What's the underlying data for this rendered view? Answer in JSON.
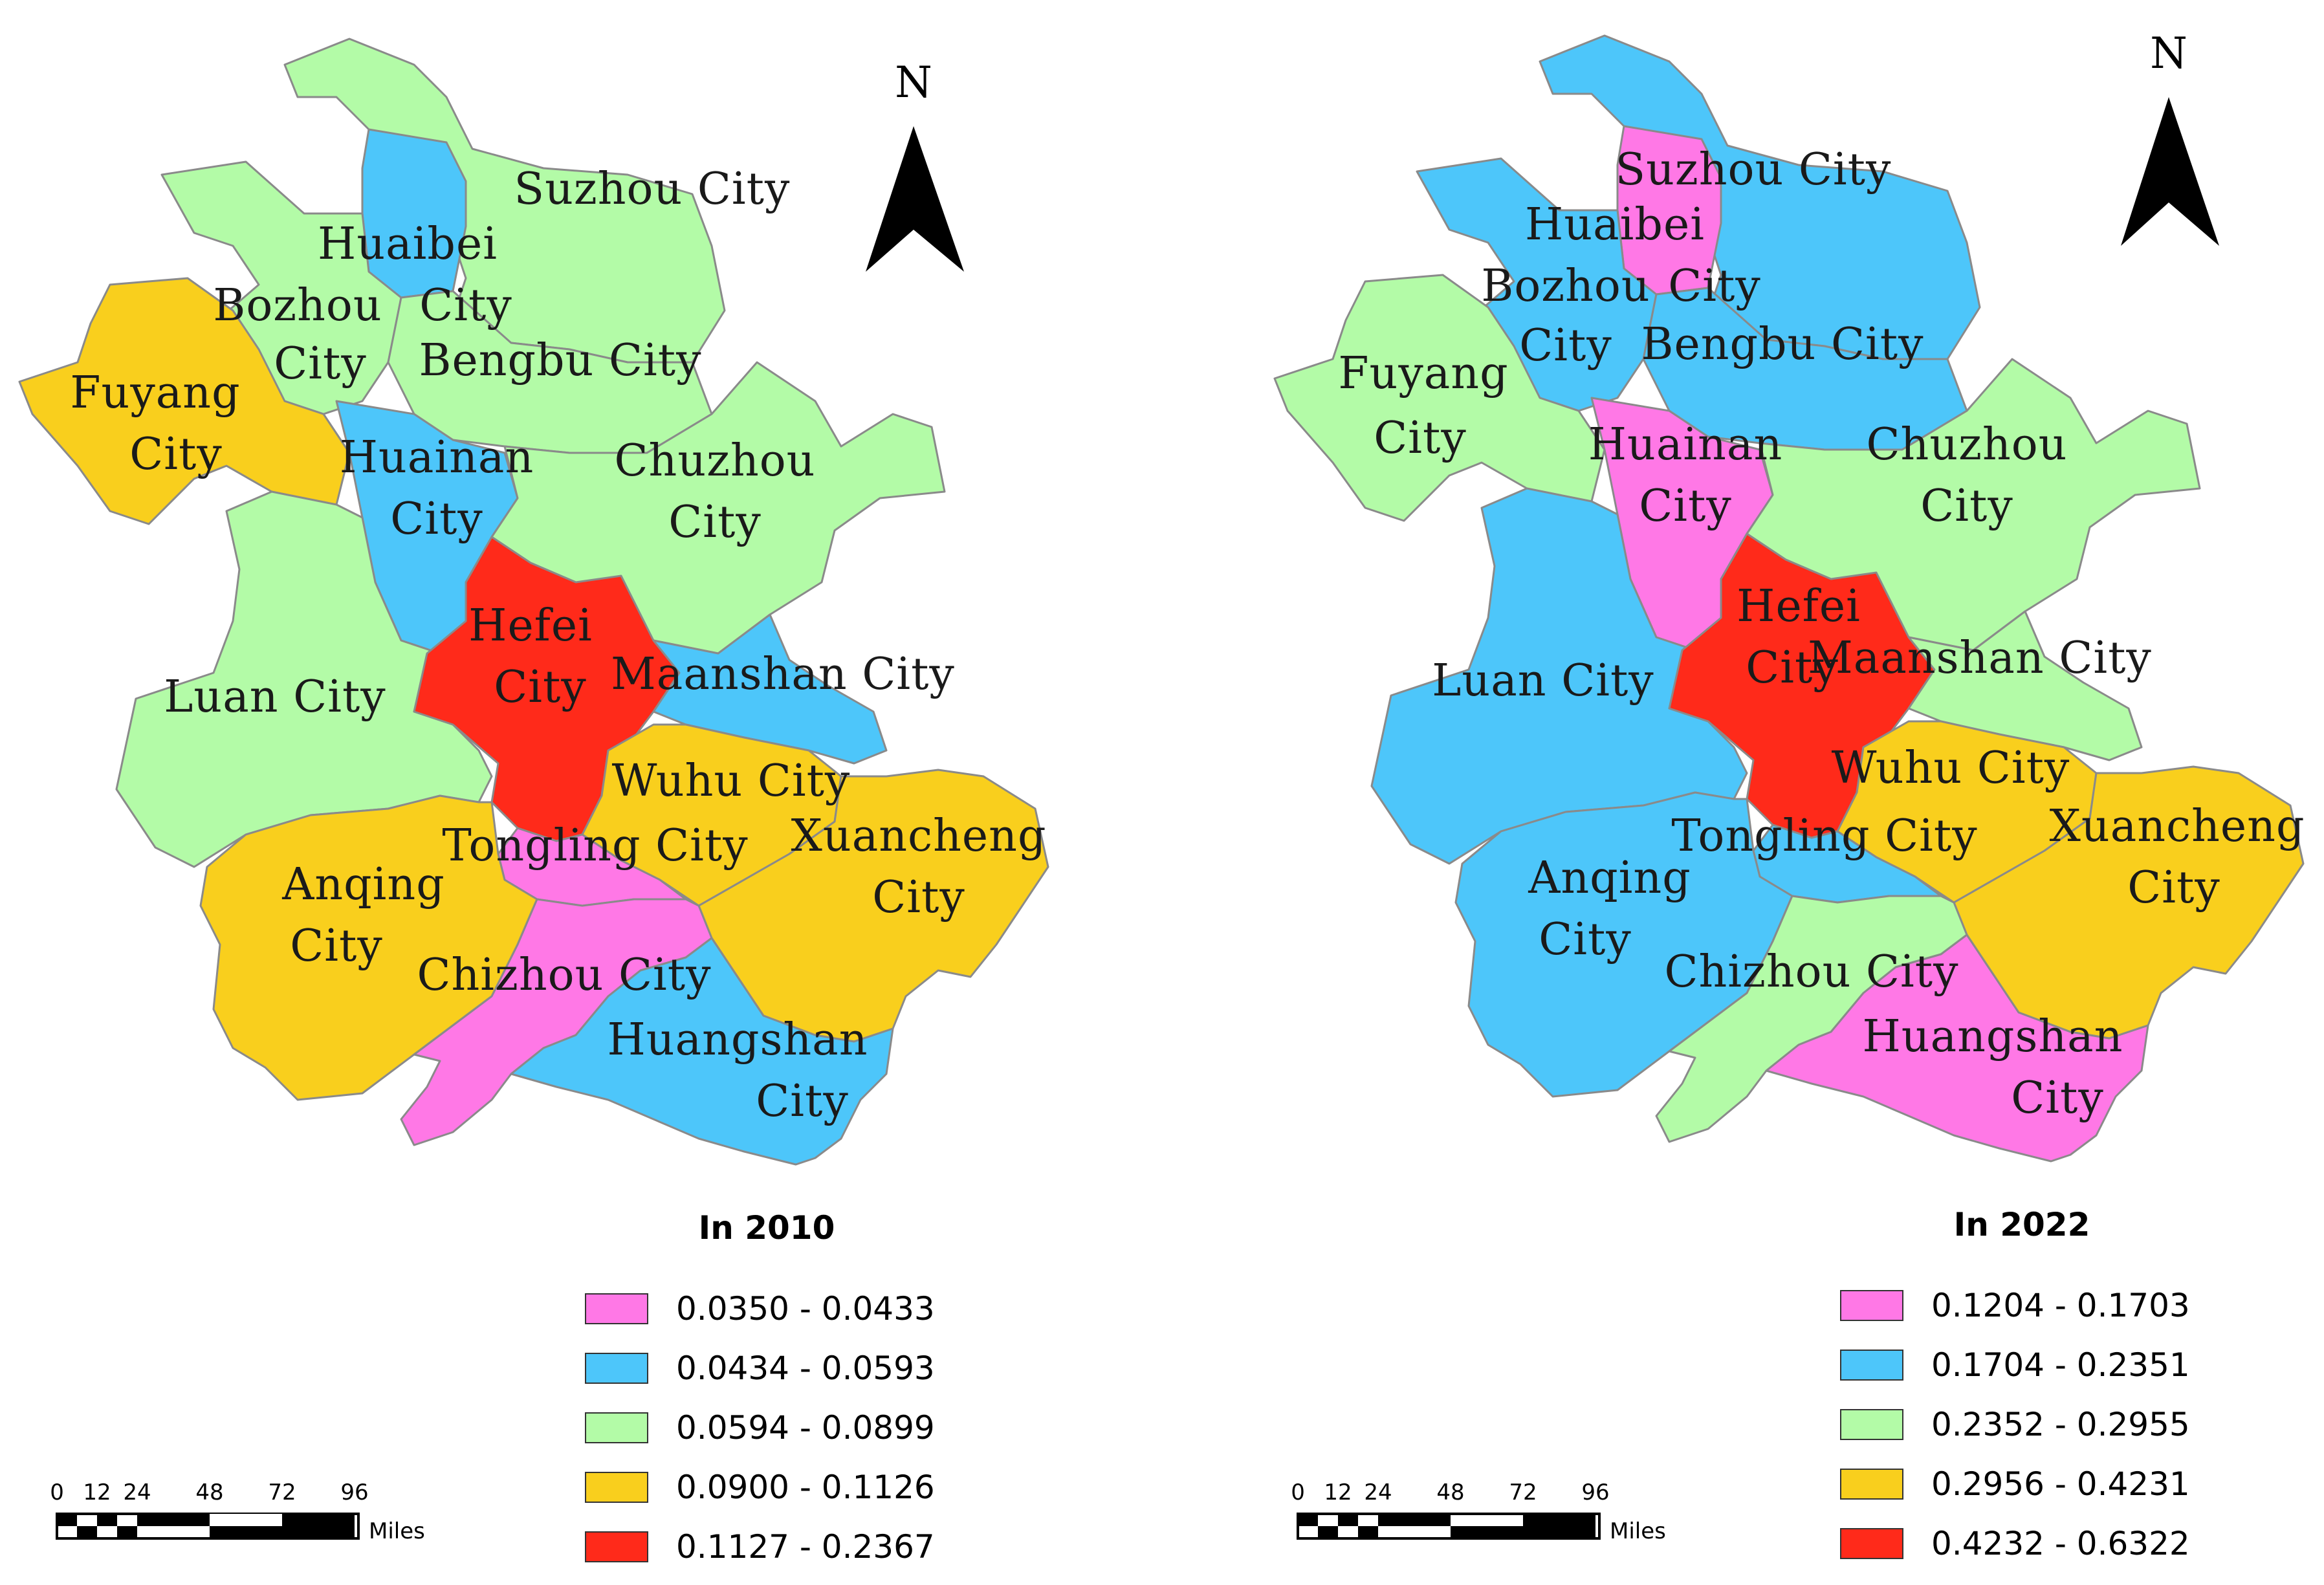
{
  "colors": {
    "class1": "#ff78e6",
    "class2": "#4dc6fa",
    "class3": "#b3fba7",
    "class4": "#f9cf1d",
    "class5": "#ff2a1a"
  },
  "maps": [
    {
      "title": "In 2010",
      "north_label": "N",
      "legend": [
        {
          "range": "0.0350 - 0.0433",
          "class": "class1"
        },
        {
          "range": "0.0434 - 0.0593",
          "class": "class2"
        },
        {
          "range": "0.0594 - 0.0899",
          "class": "class3"
        },
        {
          "range": "0.0900 - 0.1126",
          "class": "class4"
        },
        {
          "range": "0.1127 - 0.2367",
          "class": "class5"
        }
      ],
      "scale": {
        "ticks": [
          "0",
          "12",
          "24",
          "48",
          "72",
          "96"
        ],
        "unit": "Miles"
      },
      "cities": {
        "suzhou": {
          "line1": "Suzhou",
          "line2": "City",
          "class": "class3"
        },
        "huaibei": {
          "line1": "Huaibei",
          "line2": "City",
          "class": "class2"
        },
        "bozhou": {
          "line1": "Bozhou",
          "line2": "City",
          "class": "class3"
        },
        "bengbu": {
          "line1": "Bengbu",
          "line2": "City",
          "class": "class3"
        },
        "fuyang": {
          "line1": "Fuyang",
          "line2": "City",
          "class": "class4"
        },
        "huainan": {
          "line1": "Huainan",
          "line2": "City",
          "class": "class2"
        },
        "chuzhou": {
          "line1": "Chuzhou",
          "line2": "City",
          "class": "class3"
        },
        "hefei": {
          "line1": "Hefei",
          "line2": "City",
          "class": "class5"
        },
        "luan": {
          "line1": "Luan",
          "line2": "City",
          "class": "class3"
        },
        "maanshan": {
          "line1": "Maanshan",
          "line2": "City",
          "class": "class2"
        },
        "wuhu": {
          "line1": "Wuhu",
          "line2": "City",
          "class": "class4"
        },
        "tongling": {
          "line1": "Tongling",
          "line2": "City",
          "class": "class1"
        },
        "xuancheng": {
          "line1": "Xuancheng",
          "line2": "City",
          "class": "class4"
        },
        "anqing": {
          "line1": "Anqing",
          "line2": "City",
          "class": "class4"
        },
        "chizhou": {
          "line1": "Chizhou",
          "line2": "City",
          "class": "class1"
        },
        "huangshan": {
          "line1": "Huangshan",
          "line2": "City",
          "class": "class2"
        }
      }
    },
    {
      "title": "In 2022",
      "north_label": "N",
      "legend": [
        {
          "range": "0.1204 - 0.1703",
          "class": "class1"
        },
        {
          "range": "0.1704 - 0.2351",
          "class": "class2"
        },
        {
          "range": "0.2352 - 0.2955",
          "class": "class3"
        },
        {
          "range": "0.2956 - 0.4231",
          "class": "class4"
        },
        {
          "range": "0.4232 - 0.6322",
          "class": "class5"
        }
      ],
      "scale": {
        "ticks": [
          "0",
          "12",
          "24",
          "48",
          "72",
          "96"
        ],
        "unit": "Miles"
      },
      "cities": {
        "suzhou": {
          "line1": "Suzhou",
          "line2": "City",
          "class": "class2"
        },
        "huaibei": {
          "line1": "Huaibei",
          "line2": "City",
          "class": "class1"
        },
        "bozhou": {
          "line1": "Bozhou",
          "line2": "City",
          "class": "class2"
        },
        "bengbu": {
          "line1": "Bengbu",
          "line2": "City",
          "class": "class2"
        },
        "fuyang": {
          "line1": "Fuyang",
          "line2": "City",
          "class": "class3"
        },
        "huainan": {
          "line1": "Huainan",
          "line2": "City",
          "class": "class1"
        },
        "chuzhou": {
          "line1": "Chuzhou",
          "line2": "City",
          "class": "class3"
        },
        "hefei": {
          "line1": "Hefei",
          "line2": "City",
          "class": "class5"
        },
        "luan": {
          "line1": "Luan",
          "line2": "City",
          "class": "class2"
        },
        "maanshan": {
          "line1": "Maanshan",
          "line2": "City",
          "class": "class3"
        },
        "wuhu": {
          "line1": "Wuhu",
          "line2": "City",
          "class": "class4"
        },
        "tongling": {
          "line1": "Tongling",
          "line2": "City",
          "class": "class2"
        },
        "xuancheng": {
          "line1": "Xuancheng",
          "line2": "City",
          "class": "class4"
        },
        "anqing": {
          "line1": "Anqing",
          "line2": "City",
          "class": "class2"
        },
        "chizhou": {
          "line1": "Chizhou",
          "line2": "City",
          "class": "class3"
        },
        "huangshan": {
          "line1": "Huangshan",
          "line2": "City",
          "class": "class1"
        }
      }
    }
  ]
}
